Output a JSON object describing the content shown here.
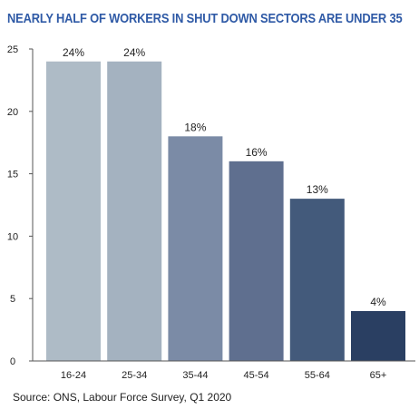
{
  "title": "NEARLY HALF OF WORKERS IN SHUT DOWN SECTORS ARE UNDER 35",
  "source": "Source: ONS, Labour Force Survey, Q1 2020",
  "chart_data": {
    "type": "bar",
    "title": "NEARLY HALF OF WORKERS IN SHUT DOWN SECTORS ARE UNDER 35",
    "xlabel": "",
    "ylabel": "",
    "categories": [
      "16-24",
      "25-34",
      "35-44",
      "45-54",
      "55-64",
      "65+"
    ],
    "values": [
      24,
      24,
      18,
      16,
      13,
      4
    ],
    "data_labels": [
      "24%",
      "24%",
      "18%",
      "16%",
      "13%",
      "4%"
    ],
    "bar_colors": [
      "#aebbc6",
      "#a4b2c0",
      "#7b8ba6",
      "#5f6f8f",
      "#435a7b",
      "#2a3f62"
    ],
    "ylim": [
      0,
      25
    ],
    "yticks": [
      0,
      5,
      10,
      15,
      20,
      25
    ],
    "grid": false,
    "legend": "none"
  }
}
